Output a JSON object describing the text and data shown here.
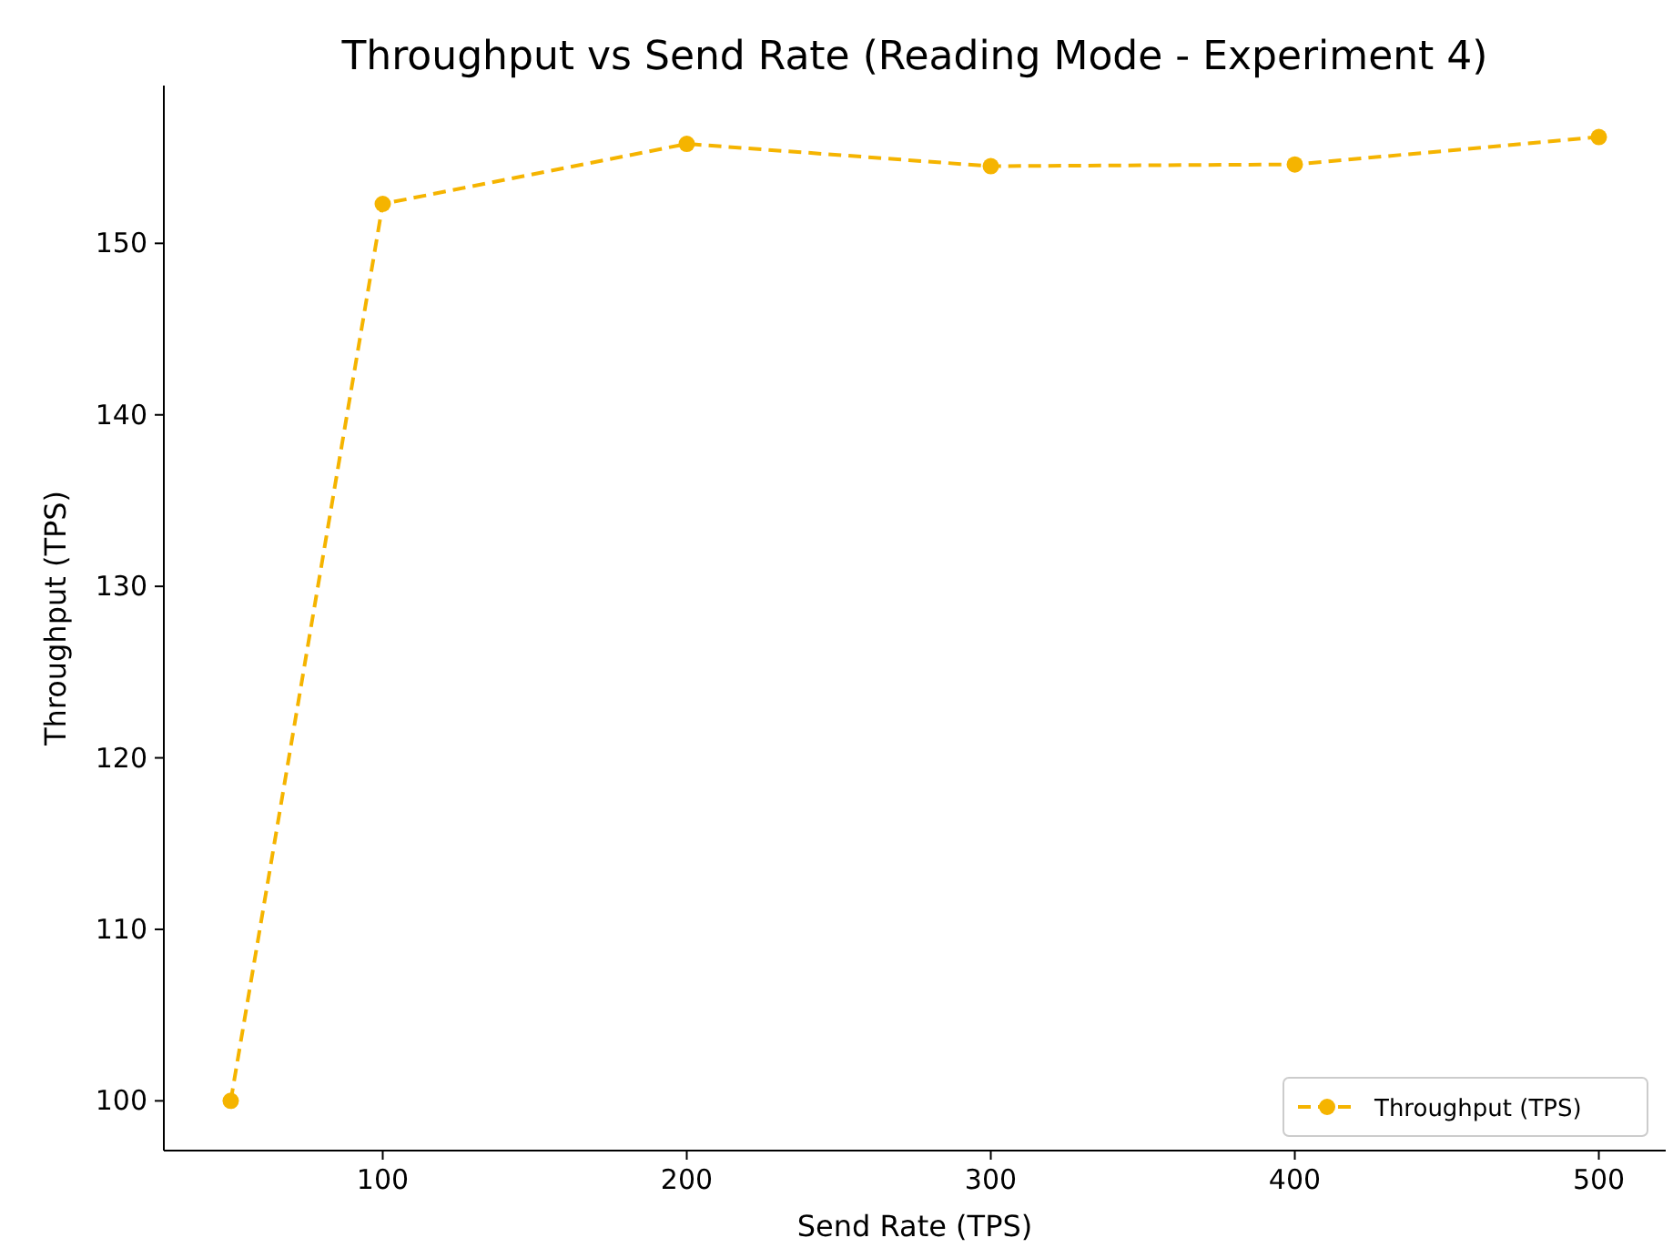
{
  "chart_data": {
    "type": "line",
    "title": "Throughput vs Send Rate (Reading Mode - Experiment 4)",
    "xlabel": "Send Rate (TPS)",
    "ylabel": "Throughput (TPS)",
    "x": [
      50,
      100,
      200,
      300,
      400,
      500
    ],
    "series": [
      {
        "name": "Throughput (TPS)",
        "color": "#f5b400",
        "values": [
          100,
          152.3,
          155.8,
          154.5,
          154.6,
          156.2
        ]
      }
    ],
    "xlim": [
      28,
      522
    ],
    "ylim": [
      97.1,
      159.2
    ],
    "xticks": [
      100,
      200,
      300,
      400,
      500
    ],
    "yticks": [
      100,
      110,
      120,
      130,
      140,
      150
    ],
    "grid": false,
    "legend": "bottom right",
    "marker": "circle",
    "line_style": "dashed"
  }
}
